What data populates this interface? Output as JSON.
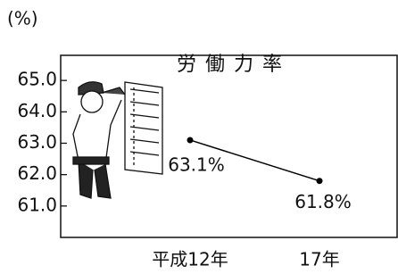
{
  "chart_data": {
    "type": "line",
    "title": "労働力率",
    "y_unit": "(%)",
    "categories": [
      "平成12年",
      "17年"
    ],
    "values": [
      63.1,
      61.8
    ],
    "value_labels": [
      "63.1%",
      "61.8%"
    ],
    "color": "#000000",
    "ylim": [
      60,
      65.8
    ],
    "yticks": [
      {
        "value": 61,
        "label": "61.0"
      },
      {
        "value": 62,
        "label": "62.0"
      },
      {
        "value": 63,
        "label": "63.0"
      },
      {
        "value": 64,
        "label": "64.0"
      },
      {
        "value": 65,
        "label": "65.0"
      }
    ]
  }
}
